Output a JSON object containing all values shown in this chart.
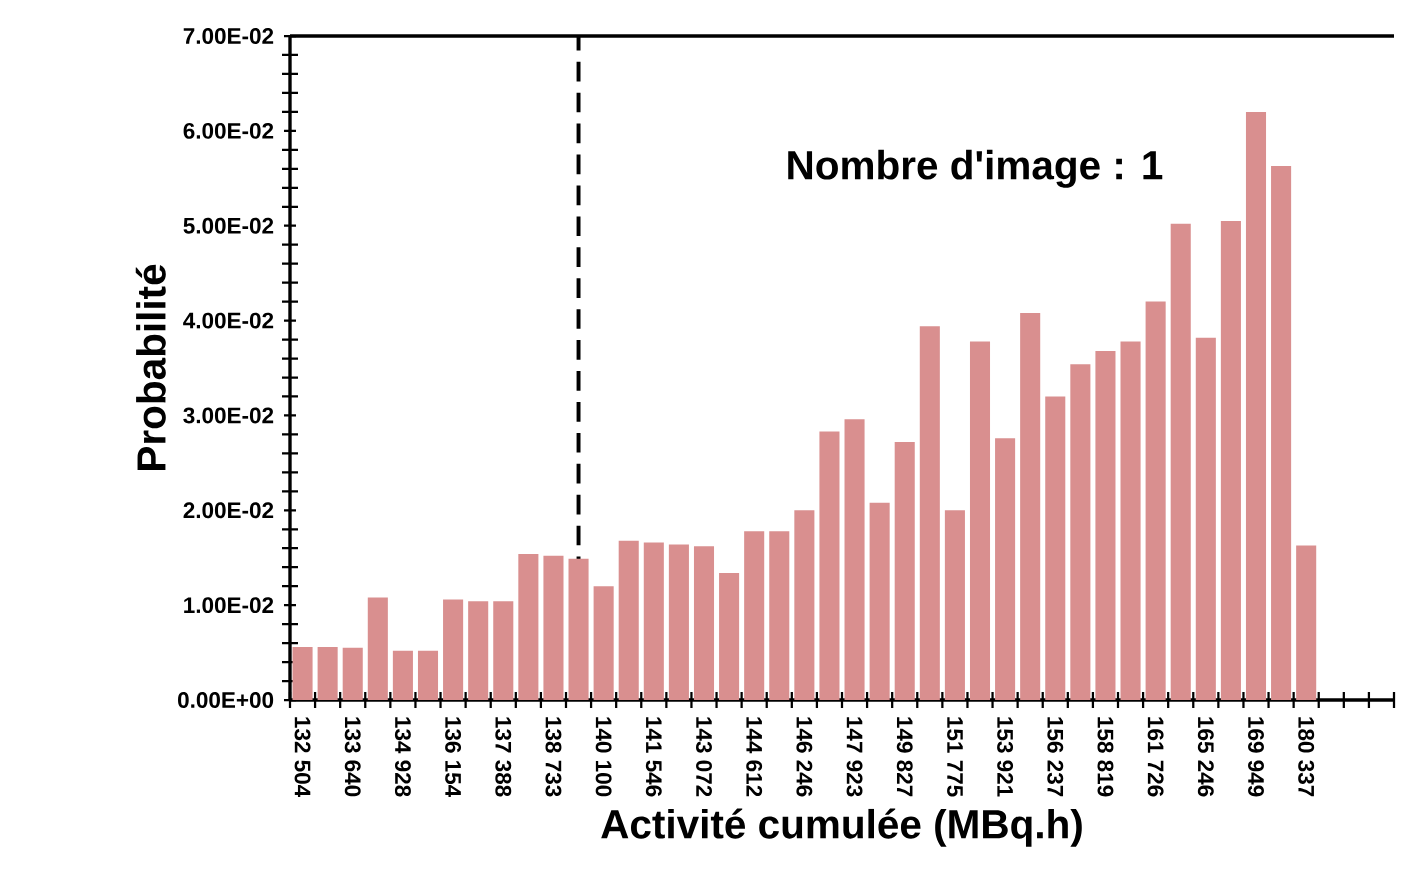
{
  "chart_data": {
    "type": "bar",
    "xlabel": "Activité cumulée (MBq.h)",
    "ylabel": "Probabilité",
    "categories": [
      "132 504",
      null,
      "133 640",
      null,
      "134 928",
      null,
      "136 154",
      null,
      "137 388",
      null,
      "138 733",
      null,
      "140 100",
      null,
      "141 546",
      null,
      "143 072",
      null,
      "144 612",
      null,
      "146 246",
      null,
      "147 923",
      null,
      "149 827",
      null,
      "151 775",
      null,
      "153 921",
      null,
      "156 237",
      null,
      "158 819",
      null,
      "161 726",
      null,
      "165 246",
      null,
      "169 949",
      null,
      "180 337"
    ],
    "values": [
      0.0056,
      0.0056,
      0.0055,
      0.0108,
      0.0052,
      0.0052,
      0.0106,
      0.0104,
      0.0104,
      0.0154,
      0.0152,
      0.0149,
      0.012,
      0.0168,
      0.0166,
      0.0164,
      0.0162,
      0.0134,
      0.0178,
      0.0178,
      0.02,
      0.0283,
      0.0296,
      0.0208,
      0.0272,
      0.0394,
      0.02,
      0.0378,
      0.0276,
      0.0408,
      0.032,
      0.0354,
      0.0368,
      0.0378,
      0.042,
      0.0502,
      0.0382,
      0.0505,
      0.062,
      0.0563,
      0.0163
    ],
    "color": "#d98f8f",
    "ylim": [
      0,
      0.07
    ],
    "yticks": [
      {
        "value": 0,
        "label": "0.00E+00"
      },
      {
        "value": 0.01,
        "label": "1.00E-02"
      },
      {
        "value": 0.02,
        "label": "2.00E-02"
      },
      {
        "value": 0.03,
        "label": "3.00E-02"
      },
      {
        "value": 0.04,
        "label": "4.00E-02"
      },
      {
        "value": 0.05,
        "label": "5.00E-02"
      },
      {
        "value": 0.06,
        "label": "6.00E-02"
      },
      {
        "value": 0.07,
        "label": "7.00E-02"
      }
    ],
    "annotations": [
      "Nombre d'image : 1"
    ]
  }
}
